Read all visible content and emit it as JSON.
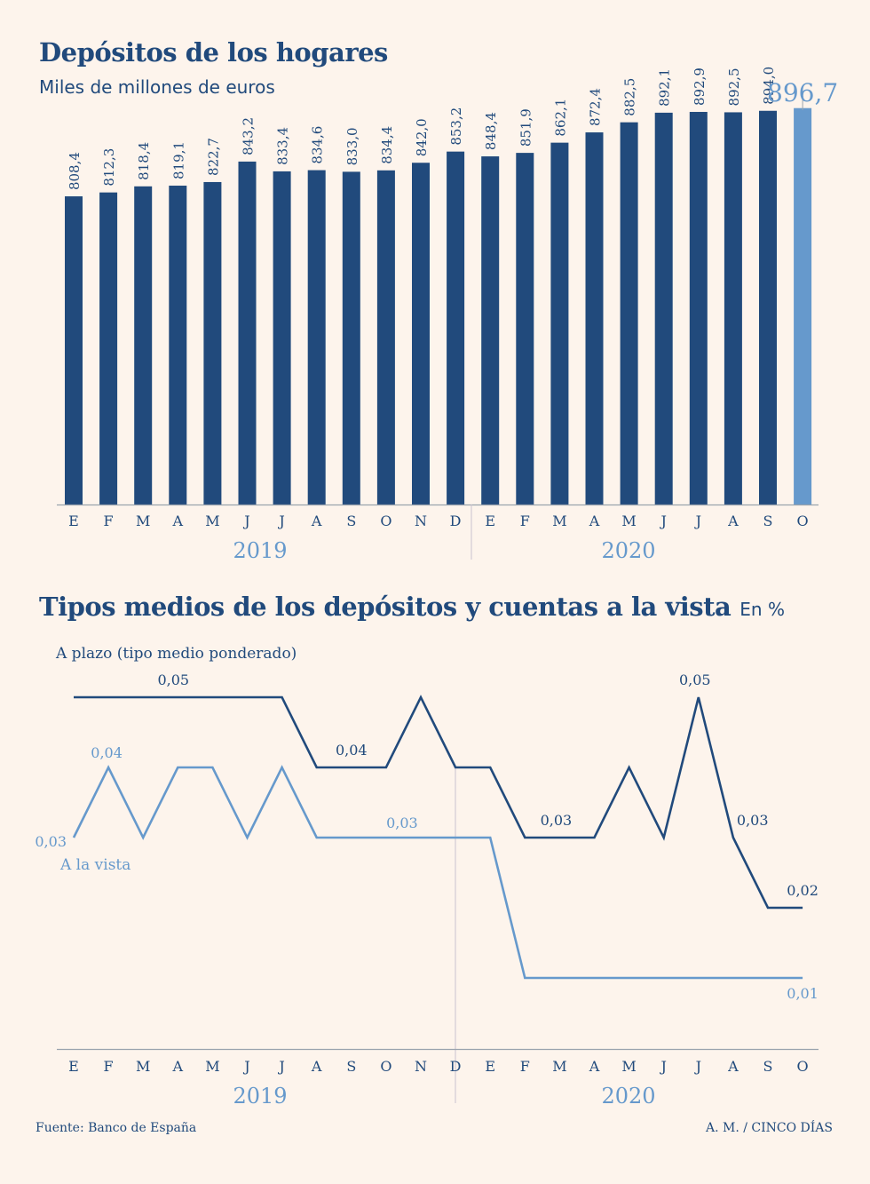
{
  "chart_data": [
    {
      "type": "bar",
      "title": "Depósitos de los hogares",
      "subtitle": "Miles de millones de euros",
      "categories": [
        "E",
        "F",
        "M",
        "A",
        "M",
        "J",
        "J",
        "A",
        "S",
        "O",
        "N",
        "D",
        "E",
        "F",
        "M",
        "A",
        "M",
        "J",
        "J",
        "A",
        "S",
        "O"
      ],
      "years": [
        "2019",
        "2020"
      ],
      "values": [
        808.4,
        812.3,
        818.4,
        819.1,
        822.7,
        843.2,
        833.4,
        834.6,
        833.0,
        834.4,
        842.0,
        853.2,
        848.4,
        851.9,
        862.1,
        872.4,
        882.5,
        892.1,
        892.9,
        892.5,
        894.0,
        896.7
      ],
      "value_labels": [
        "808,4",
        "812,3",
        "818,4",
        "819,1",
        "822,7",
        "843,2",
        "833,4",
        "834,6",
        "833,0",
        "834,4",
        "842,0",
        "853,2",
        "848,4",
        "851,9",
        "862,1",
        "872,4",
        "882,5",
        "892,1",
        "892,9",
        "892,5",
        "894,0",
        "896,7"
      ],
      "highlight_last": true,
      "colors": {
        "bar": "#214a7c",
        "highlight": "#6699cc",
        "axis": "#9aa3ad"
      }
    },
    {
      "type": "line",
      "title": "Tipos medios de los depósitos y cuentas a la vista",
      "unit": "En %",
      "categories": [
        "E",
        "F",
        "M",
        "A",
        "M",
        "J",
        "J",
        "A",
        "S",
        "O",
        "N",
        "D",
        "E",
        "F",
        "M",
        "A",
        "M",
        "J",
        "J",
        "A",
        "S",
        "O"
      ],
      "years": [
        "2019",
        "2020"
      ],
      "ylim": [
        0,
        0.055
      ],
      "series": [
        {
          "name": "A plazo (tipo medio ponderado)",
          "color": "#214a7c",
          "values": [
            0.05,
            0.05,
            0.05,
            0.05,
            0.05,
            0.05,
            0.05,
            0.04,
            0.04,
            0.04,
            0.05,
            0.04,
            0.04,
            0.03,
            0.03,
            0.03,
            0.04,
            0.03,
            0.05,
            0.03,
            0.02,
            0.02
          ],
          "labels": [
            {
              "index": 3,
              "text": "0,05"
            },
            {
              "index": 8,
              "text": "0,04"
            },
            {
              "index": 14,
              "text": "0,03"
            },
            {
              "index": 18,
              "text": "0,05"
            },
            {
              "index": 19,
              "text": "0,03"
            },
            {
              "index": 21,
              "text": "0,02"
            }
          ]
        },
        {
          "name": "A la vista",
          "color": "#6699cc",
          "values": [
            0.03,
            0.04,
            0.03,
            0.04,
            0.04,
            0.03,
            0.04,
            0.03,
            0.03,
            0.03,
            0.03,
            0.03,
            0.03,
            0.01,
            0.01,
            0.01,
            0.01,
            0.01,
            0.01,
            0.01,
            0.01,
            0.01
          ],
          "labels": [
            {
              "index": 0,
              "text": "0,03"
            },
            {
              "index": 1,
              "text": "0,04"
            },
            {
              "index": 9,
              "text": "0,03"
            },
            {
              "index": 21,
              "text": "0,01"
            }
          ]
        }
      ]
    }
  ],
  "footer": {
    "source": "Fuente: Banco de España",
    "credit": "A. M. / CINCO DÍAS"
  }
}
